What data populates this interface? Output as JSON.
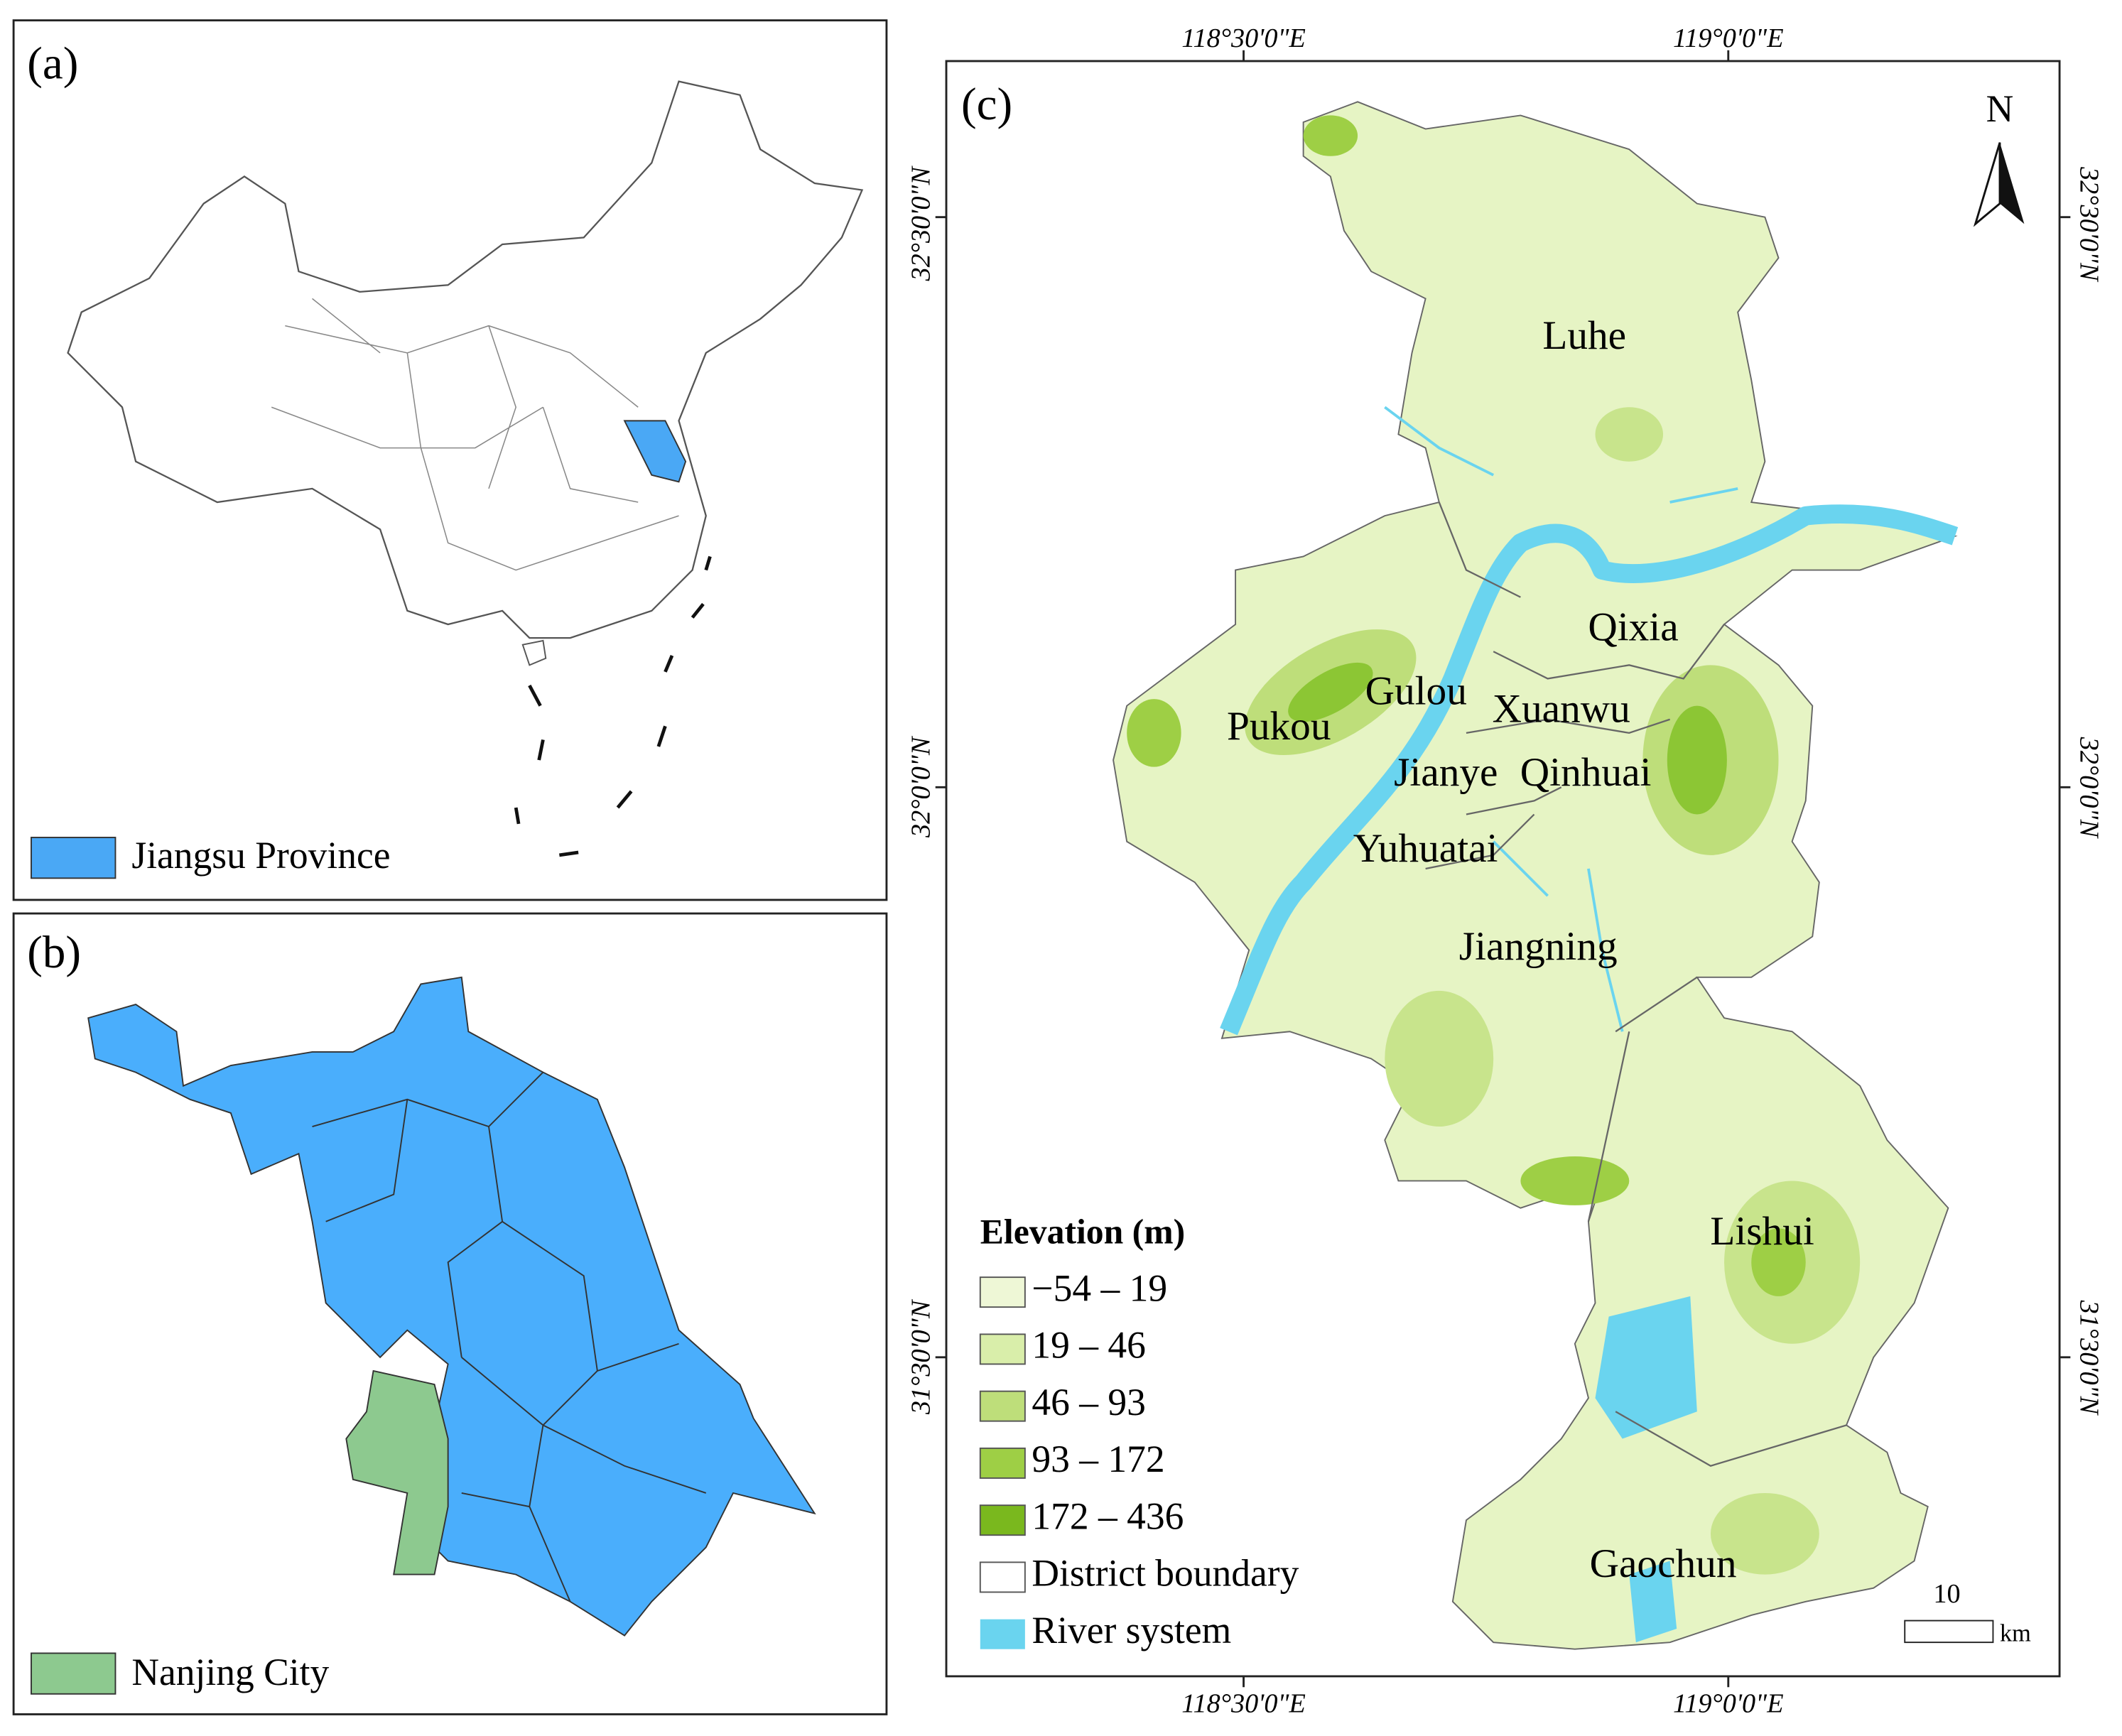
{
  "panel_a": {
    "label": "(a)",
    "legend": "Jiangsu Province"
  },
  "panel_b": {
    "label": "(b)",
    "legend": "Nanjing City"
  },
  "panel_c": {
    "label": "(c)",
    "north": "N",
    "lon_ticks": [
      "118°30'0\"E",
      "119°0'0\"E"
    ],
    "lat_ticks": [
      "32°30'0\"N",
      "32°0'0\"N",
      "31°30'0\"N"
    ],
    "districts": [
      "Luhe",
      "Qixia",
      "Gulou",
      "Xuanwu",
      "Pukou",
      "Jianye",
      "Qinhuai",
      "Yuhuatai",
      "Jiangning",
      "Lishui",
      "Gaochun"
    ],
    "legend_title": "Elevation (m)",
    "legend_items": [
      "−54 – 19",
      "19 – 46",
      "46 – 93",
      "93 – 172",
      "172 – 436",
      "District boundary",
      "River system"
    ],
    "scale": "10",
    "scale_unit": "km"
  }
}
